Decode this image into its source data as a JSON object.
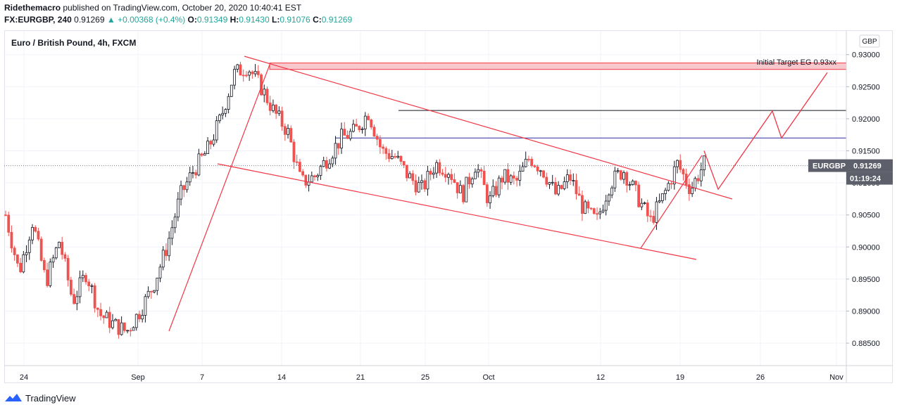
{
  "header": {
    "publisher": "Ridethemacro",
    "published_text": "published on TradingView.com, October 20, 2020 10:40:41 EST",
    "symbol_code": "FX:EURGBP, 240",
    "last_price": "0.91269",
    "change_text": "▲ +0.00368 (+0.4%)",
    "open_label": "O:",
    "open": "0.91349",
    "high_label": "H:",
    "high": "0.91430",
    "low_label": "L:",
    "low": "0.91076",
    "close_label": "C:",
    "close": "0.91269"
  },
  "footer": {
    "brand": "TradingView"
  },
  "chart_data": {
    "type": "candlestick",
    "title": "Euro / British Pound, 4h, FXCM",
    "currency_badge": "GBP",
    "y_ticks": [
      "0.93000",
      "0.92500",
      "0.92000",
      "0.91500",
      "0.91000",
      "0.90500",
      "0.90000",
      "0.89500",
      "0.89000",
      "0.88500"
    ],
    "ylim": [
      0.8815,
      0.9337
    ],
    "x_ticks": [
      "24",
      "Sep",
      "7",
      "14",
      "21",
      "25",
      "Oct",
      "12",
      "19",
      "26",
      "Nov"
    ],
    "price_label": {
      "symbol": "EURGBP",
      "value": "0.91269",
      "countdown": "01:19:24"
    },
    "annotation": "Initial Target EG 0.93xx",
    "levels": [
      0.917,
      0.9213
    ],
    "target_zone": [
      0.9277,
      0.9287
    ],
    "colors": {
      "up": "#131722",
      "down": "#ef5350",
      "drawing": "#f23645",
      "zone_fill": "#f8c9cc",
      "level_blue": "#2c2ca0",
      "level_black": "#131722"
    },
    "path": [
      0.905,
      0.896,
      0.904,
      0.8945,
      0.901,
      0.8915,
      0.896,
      0.8895,
      0.888,
      0.8868,
      0.89,
      0.894,
      0.9,
      0.908,
      0.912,
      0.915,
      0.92,
      0.927,
      0.9282,
      0.925,
      0.921,
      0.918,
      0.91,
      0.911,
      0.914,
      0.917,
      0.918,
      0.921,
      0.915,
      0.914,
      0.911,
      0.909,
      0.913,
      0.912,
      0.908,
      0.913,
      0.907,
      0.911,
      0.91,
      0.914,
      0.912,
      0.908,
      0.911,
      0.906,
      0.904,
      0.91,
      0.912,
      0.908,
      0.904,
      0.908,
      0.913,
      0.909,
      0.913
    ],
    "projection": [
      [
        1000,
        0.915
      ],
      [
        1020,
        0.909
      ],
      [
        1097,
        0.9212
      ],
      [
        1110,
        0.917
      ],
      [
        1175,
        0.9272
      ]
    ]
  }
}
